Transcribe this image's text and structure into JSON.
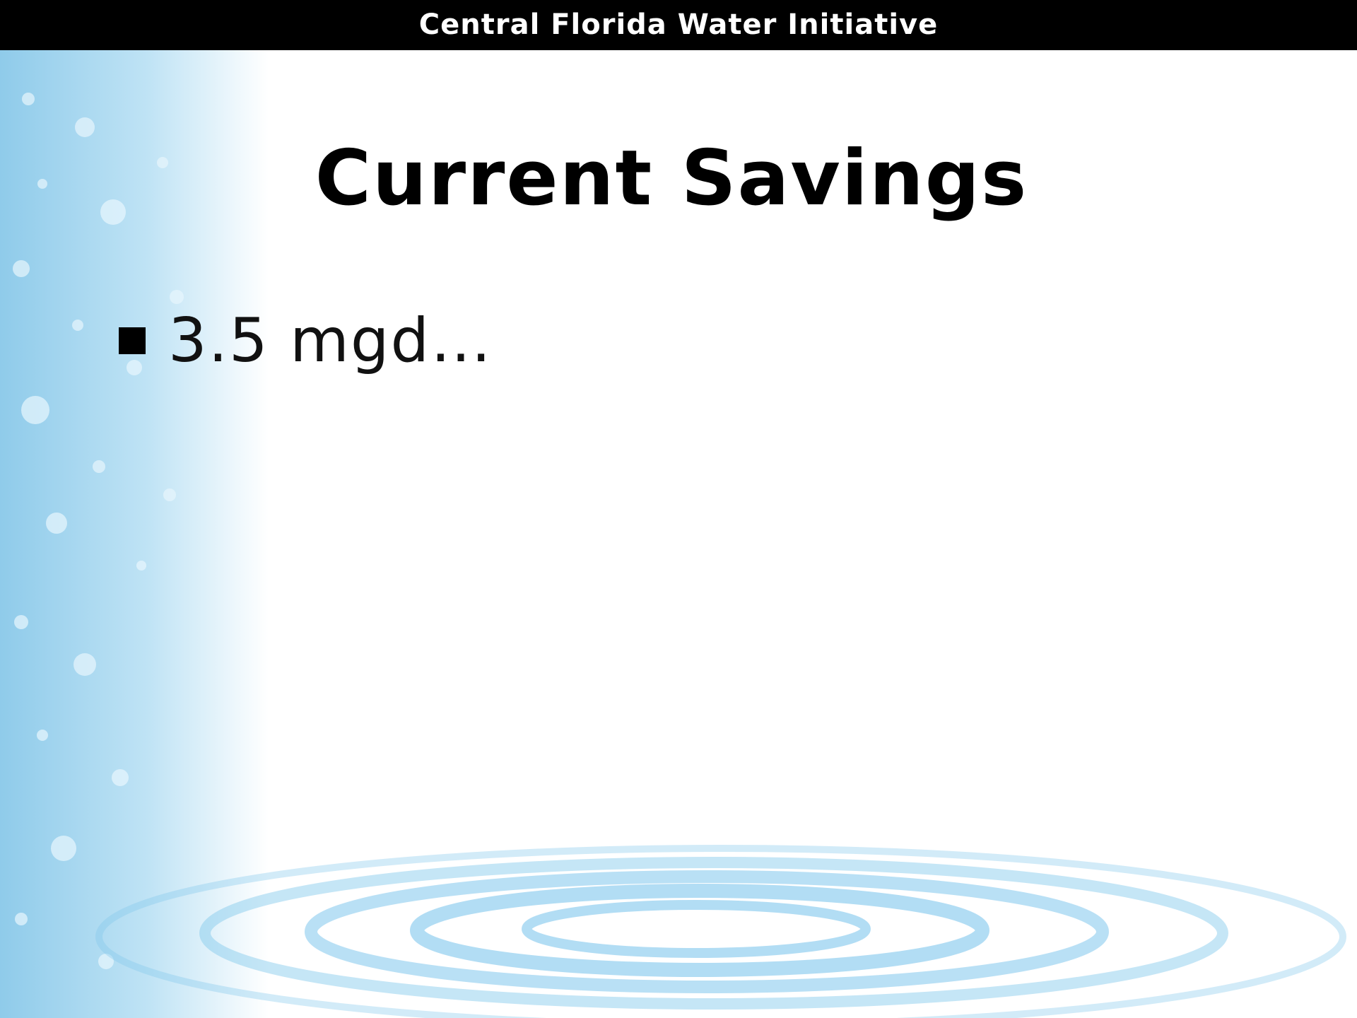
{
  "header": {
    "title": "Central Florida Water Initiative"
  },
  "slide": {
    "title": "Current Savings",
    "bullets": [
      "3.5 mgd…"
    ]
  }
}
